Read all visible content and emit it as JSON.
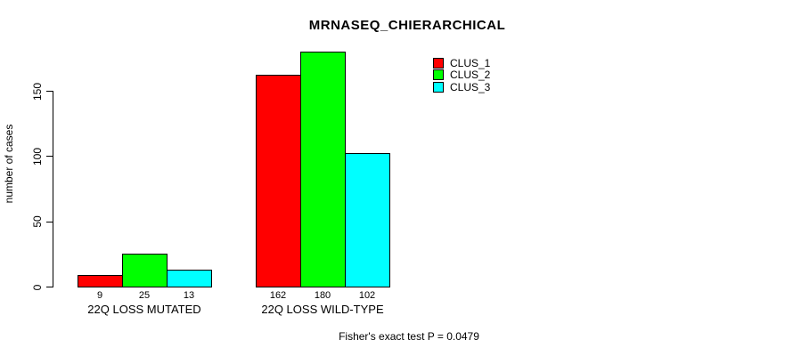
{
  "title": "MRNASEQ_CHIERARCHICAL",
  "footer_note": "Fisher's exact test P = 0.0479",
  "colors": {
    "clus_1": "#ff0000",
    "clus_2": "#00ff00",
    "clus_3": "#00ffff",
    "axis": "#000000",
    "background": "#ffffff"
  },
  "chart_data": {
    "type": "bar",
    "title": "MRNASEQ_CHIERARCHICAL",
    "xlabel": "",
    "ylabel": "number of cases",
    "categories": [
      "22Q LOSS MUTATED",
      "22Q LOSS WILD-TYPE"
    ],
    "series": [
      {
        "name": "CLUS_1",
        "color": "#ff0000",
        "values": [
          9,
          162
        ]
      },
      {
        "name": "CLUS_2",
        "color": "#00ff00",
        "values": [
          25,
          180
        ]
      },
      {
        "name": "CLUS_3",
        "color": "#00ffff",
        "values": [
          13,
          102
        ]
      }
    ],
    "bar_value_labels": [
      [
        "9",
        "25",
        "13"
      ],
      [
        "162",
        "180",
        "102"
      ]
    ],
    "yticks": [
      0,
      50,
      100,
      150
    ],
    "ylim": [
      0,
      185
    ],
    "grid": false,
    "legend_position": "top-right",
    "annotation": "Fisher's exact test P = 0.0479"
  }
}
